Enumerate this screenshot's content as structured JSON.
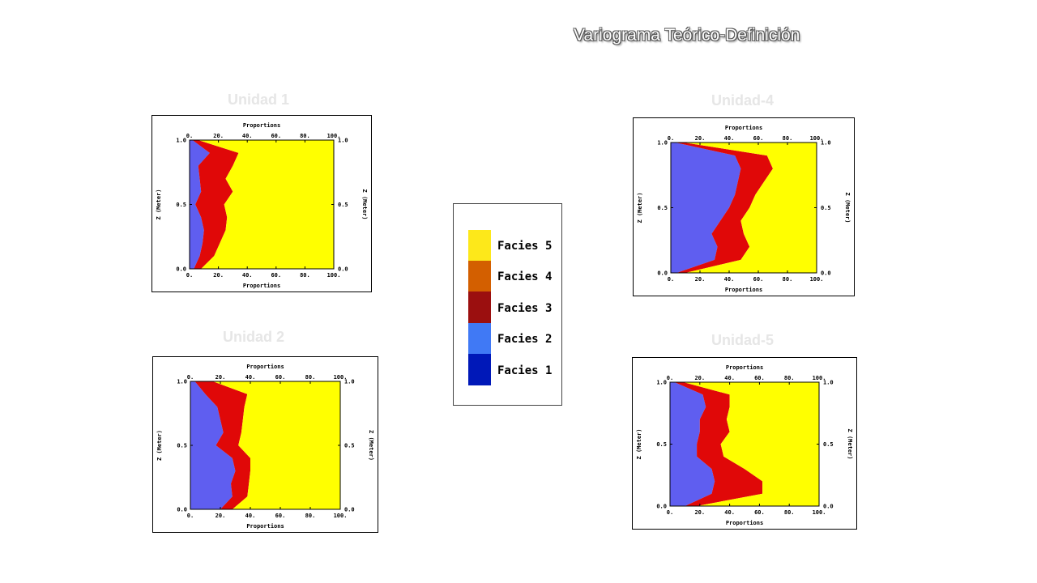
{
  "slide": {
    "title": "Variograma Teórico-Definición"
  },
  "colors": {
    "facies1": "#0018b8",
    "facies2": "#5f5ef0",
    "facies2_chart": "#6ab4f5",
    "facies3": "#e00808",
    "facies3_dark": "#9b0f0f",
    "facies4": "#d35f00",
    "facies5": "#ffff00",
    "facies5_legend": "#fde81a",
    "legend_facies2": "#4079f5"
  },
  "legend": {
    "items": [
      {
        "label": "Facies 5",
        "color": "#fde81a"
      },
      {
        "label": "Facies 4",
        "color": "#d35f00"
      },
      {
        "label": "Facies 3",
        "color": "#9b0f0f"
      },
      {
        "label": "Facies 2",
        "color": "#4079f5"
      },
      {
        "label": "Facies 1",
        "color": "#0018b8"
      }
    ]
  },
  "chart_data": [
    {
      "type": "area",
      "unit_label": "Unidad 1",
      "title": "Proportions",
      "xlabel": "Proportions",
      "ylabel": "Z (Meter)",
      "ylabel_right": "Z (Meter)",
      "x_ticks": [
        "0.",
        "20.",
        "40.",
        "60.",
        "80.",
        "100."
      ],
      "y_ticks": [
        "0.0",
        "0.5",
        "1.0"
      ],
      "xlim": [
        0,
        100
      ],
      "ylim": [
        0,
        1
      ],
      "z": [
        0.0,
        0.1,
        0.2,
        0.3,
        0.4,
        0.5,
        0.6,
        0.7,
        0.8,
        0.9,
        1.0
      ],
      "series": [
        {
          "name": "Facies 1",
          "values": [
            0,
            0,
            0,
            0,
            0,
            0,
            0,
            0,
            0,
            0,
            0
          ]
        },
        {
          "name": "Facies 2",
          "values": [
            3,
            7,
            9,
            10,
            8,
            4,
            8,
            7,
            6,
            14,
            2
          ]
        },
        {
          "name": "Facies 3",
          "values": [
            5,
            10,
            12,
            15,
            18,
            20,
            22,
            18,
            24,
            20,
            4
          ]
        },
        {
          "name": "Facies 4",
          "values": [
            0,
            0,
            0,
            0,
            0,
            0,
            0,
            0,
            0,
            0,
            0
          ]
        },
        {
          "name": "Facies 5",
          "values": [
            92,
            83,
            79,
            75,
            74,
            76,
            70,
            75,
            70,
            66,
            94
          ]
        }
      ]
    },
    {
      "type": "area",
      "unit_label": "Unidad 2",
      "title": "Proportions",
      "xlabel": "Proportions",
      "ylabel": "Z (Meter)",
      "ylabel_right": "Z (Meter)",
      "x_ticks": [
        "0.",
        "20.",
        "40.",
        "60.",
        "80.",
        "100."
      ],
      "y_ticks": [
        "0.0",
        "0.5",
        "1.0"
      ],
      "xlim": [
        0,
        100
      ],
      "ylim": [
        0,
        1
      ],
      "z": [
        0.0,
        0.1,
        0.2,
        0.3,
        0.4,
        0.5,
        0.6,
        0.7,
        0.8,
        0.9,
        1.0
      ],
      "series": [
        {
          "name": "Facies 1",
          "values": [
            0,
            0,
            0,
            0,
            0,
            0,
            0,
            0,
            0,
            0,
            0
          ]
        },
        {
          "name": "Facies 2",
          "values": [
            20,
            28,
            27,
            30,
            28,
            17,
            22,
            20,
            18,
            10,
            3
          ]
        },
        {
          "name": "Facies 3",
          "values": [
            8,
            10,
            12,
            10,
            12,
            15,
            12,
            15,
            18,
            28,
            12
          ]
        },
        {
          "name": "Facies 4",
          "values": [
            0,
            0,
            0,
            0,
            0,
            0,
            0,
            0,
            0,
            0,
            0
          ]
        },
        {
          "name": "Facies 5",
          "values": [
            72,
            62,
            61,
            60,
            60,
            68,
            66,
            65,
            64,
            62,
            85
          ]
        }
      ]
    },
    {
      "type": "area",
      "unit_label": "Unidad-4",
      "title": "Proportions",
      "xlabel": "Proportions",
      "ylabel": "Z (Meter)",
      "ylabel_right": "Z (Meter)",
      "x_ticks": [
        "0.",
        "20.",
        "40.",
        "60.",
        "80.",
        "100."
      ],
      "y_ticks": [
        "0.0",
        "0.5",
        "1.0"
      ],
      "xlim": [
        0,
        100
      ],
      "ylim": [
        0,
        1
      ],
      "z": [
        0.0,
        0.1,
        0.2,
        0.3,
        0.4,
        0.5,
        0.6,
        0.7,
        0.8,
        0.9,
        1.0
      ],
      "series": [
        {
          "name": "Facies 1",
          "values": [
            0,
            0,
            0,
            0,
            0,
            0,
            0,
            0,
            0,
            0,
            0
          ]
        },
        {
          "name": "Facies 2",
          "values": [
            4,
            30,
            32,
            28,
            34,
            40,
            44,
            46,
            48,
            44,
            3
          ]
        },
        {
          "name": "Facies 3",
          "values": [
            6,
            18,
            22,
            22,
            14,
            14,
            14,
            18,
            22,
            22,
            6
          ]
        },
        {
          "name": "Facies 4",
          "values": [
            0,
            0,
            0,
            0,
            0,
            0,
            0,
            0,
            0,
            0,
            0
          ]
        },
        {
          "name": "Facies 5",
          "values": [
            90,
            52,
            46,
            50,
            52,
            46,
            42,
            36,
            30,
            34,
            91
          ]
        }
      ]
    },
    {
      "type": "area",
      "unit_label": "Unidad-5",
      "title": "Proportions",
      "xlabel": "Proportions",
      "ylabel": "Z (Meter)",
      "ylabel_right": "Z (Meter)",
      "x_ticks": [
        "0.",
        "20.",
        "40.",
        "60.",
        "80.",
        "100."
      ],
      "y_ticks": [
        "0.0",
        "0.5",
        "1.0"
      ],
      "xlim": [
        0,
        100
      ],
      "ylim": [
        0,
        1
      ],
      "z": [
        0.0,
        0.1,
        0.2,
        0.3,
        0.4,
        0.5,
        0.6,
        0.7,
        0.8,
        0.9,
        1.0
      ],
      "series": [
        {
          "name": "Facies 1",
          "values": [
            0,
            0,
            0,
            0,
            0,
            0,
            0,
            0,
            0,
            0,
            0
          ]
        },
        {
          "name": "Facies 2",
          "values": [
            10,
            28,
            30,
            28,
            18,
            18,
            20,
            20,
            24,
            22,
            3
          ]
        },
        {
          "name": "Facies 3",
          "values": [
            8,
            34,
            32,
            22,
            18,
            16,
            20,
            18,
            16,
            18,
            6
          ]
        },
        {
          "name": "Facies 4",
          "values": [
            0,
            0,
            0,
            0,
            0,
            0,
            0,
            0,
            0,
            0,
            0
          ]
        },
        {
          "name": "Facies 5",
          "values": [
            82,
            38,
            38,
            50,
            64,
            66,
            60,
            62,
            60,
            60,
            91
          ]
        }
      ]
    }
  ]
}
